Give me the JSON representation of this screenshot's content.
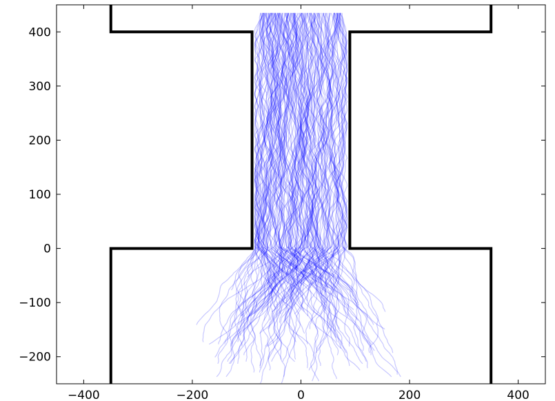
{
  "chart_data": {
    "type": "line",
    "title": "",
    "xlabel": "",
    "ylabel": "",
    "xlim": [
      -450,
      450
    ],
    "ylim": [
      -250,
      450
    ],
    "grid": false,
    "xticks": [
      -400,
      -200,
      0,
      200,
      400
    ],
    "xtick_labels": [
      "−400",
      "−200",
      "0",
      "200",
      "400"
    ],
    "yticks": [
      -200,
      -100,
      0,
      100,
      200,
      300,
      400
    ],
    "ytick_labels": [
      "−200",
      "−100",
      "0",
      "100",
      "200",
      "300",
      "400"
    ],
    "walls": [
      {
        "name": "left-wall",
        "x": [
          -350,
          -350,
          -90,
          -90,
          -350,
          -350
        ],
        "y": [
          450,
          400,
          400,
          0,
          0,
          -250
        ]
      },
      {
        "name": "right-wall",
        "x": [
          350,
          350,
          90,
          90,
          350,
          350
        ],
        "y": [
          450,
          400,
          400,
          0,
          0,
          -250
        ]
      }
    ],
    "trajectories": {
      "count": 160,
      "color": "#0000ff",
      "opacity": 0.22,
      "start_y": 435,
      "start_x_range": [
        -75,
        75
      ],
      "channel_x_range": [
        -85,
        85
      ],
      "end_y": -250,
      "end_x_range": [
        -230,
        240
      ]
    },
    "colors": {
      "axes": "#000000",
      "walls": "#000000",
      "trajectory": "#0000ff"
    }
  }
}
